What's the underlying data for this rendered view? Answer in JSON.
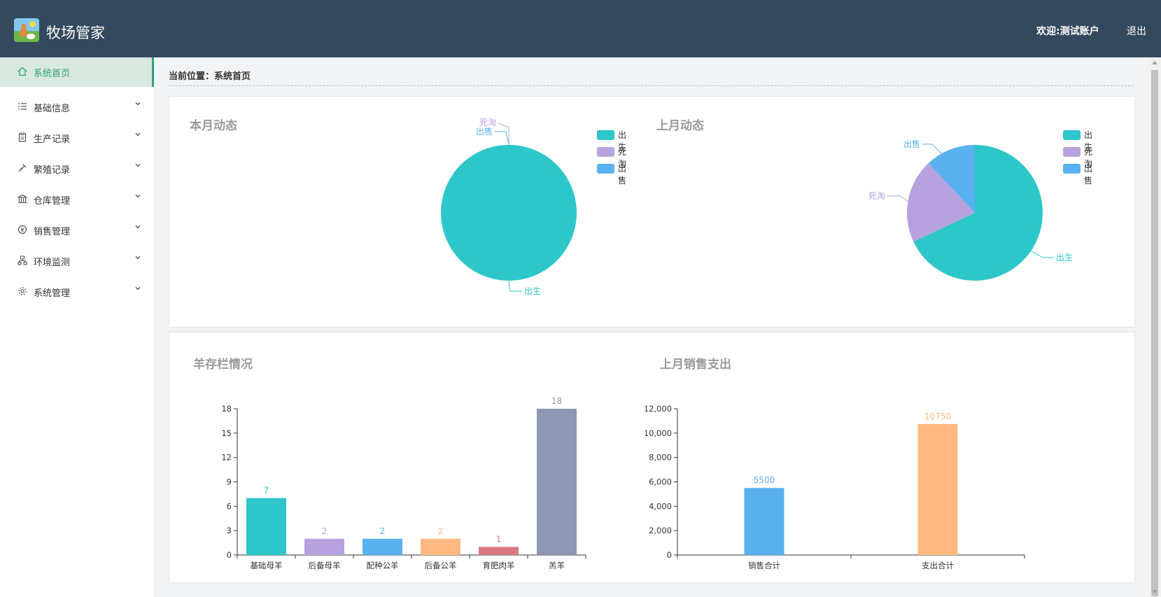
{
  "header": {
    "app_title": "牧场管家",
    "welcome": "欢迎:测试账户",
    "logout": "退出"
  },
  "sidebar": {
    "items": [
      {
        "label": "系统首页",
        "icon": "home-icon",
        "active": true
      },
      {
        "label": "基础信息",
        "icon": "list-icon"
      },
      {
        "label": "生产记录",
        "icon": "clipboard-icon"
      },
      {
        "label": "繁殖记录",
        "icon": "syringe-icon"
      },
      {
        "label": "仓库管理",
        "icon": "warehouse-icon"
      },
      {
        "label": "销售管理",
        "icon": "sales-icon"
      },
      {
        "label": "环境监测",
        "icon": "network-icon"
      },
      {
        "label": "系统管理",
        "icon": "gear-icon"
      }
    ]
  },
  "breadcrumb": "当前位置：系统首页",
  "colors": {
    "birth": "#2ec7c9",
    "death": "#b6a2de",
    "sale": "#5ab1ef",
    "orange": "#ffb980",
    "red": "#d87a80",
    "slate": "#8d98b3"
  },
  "chart_data": [
    {
      "type": "pie",
      "title": "本月动态",
      "labels": [
        "出生",
        "死淘",
        "出售"
      ],
      "values": [
        1,
        0,
        0
      ],
      "legend": "top-right",
      "slice_labels": [
        "出售",
        "死淘",
        "出生"
      ]
    },
    {
      "type": "pie",
      "title": "上月动态",
      "labels": [
        "出生",
        "死淘",
        "出售"
      ],
      "values": [
        68,
        20,
        12
      ],
      "legend": "top-right",
      "slice_labels": [
        "出生",
        "死淘",
        "出售"
      ]
    },
    {
      "type": "bar",
      "title": "羊存栏情况",
      "categories": [
        "基础母羊",
        "后备母羊",
        "配种公羊",
        "后备公羊",
        "育肥肉羊",
        "羔羊"
      ],
      "values": [
        7,
        2,
        2,
        2,
        1,
        18
      ],
      "ylim": [
        0,
        18
      ],
      "yticks": [
        "0",
        "3",
        "6",
        "9",
        "12",
        "15",
        "18"
      ],
      "grid": false
    },
    {
      "type": "bar",
      "title": "上月销售支出",
      "categories": [
        "销售合计",
        "支出合计"
      ],
      "values": [
        5500,
        10750
      ],
      "ylim": [
        0,
        12000
      ],
      "yticks": [
        "0",
        "2,000",
        "4,000",
        "6,000",
        "8,000",
        "10,000",
        "12,000"
      ],
      "grid": false
    }
  ]
}
